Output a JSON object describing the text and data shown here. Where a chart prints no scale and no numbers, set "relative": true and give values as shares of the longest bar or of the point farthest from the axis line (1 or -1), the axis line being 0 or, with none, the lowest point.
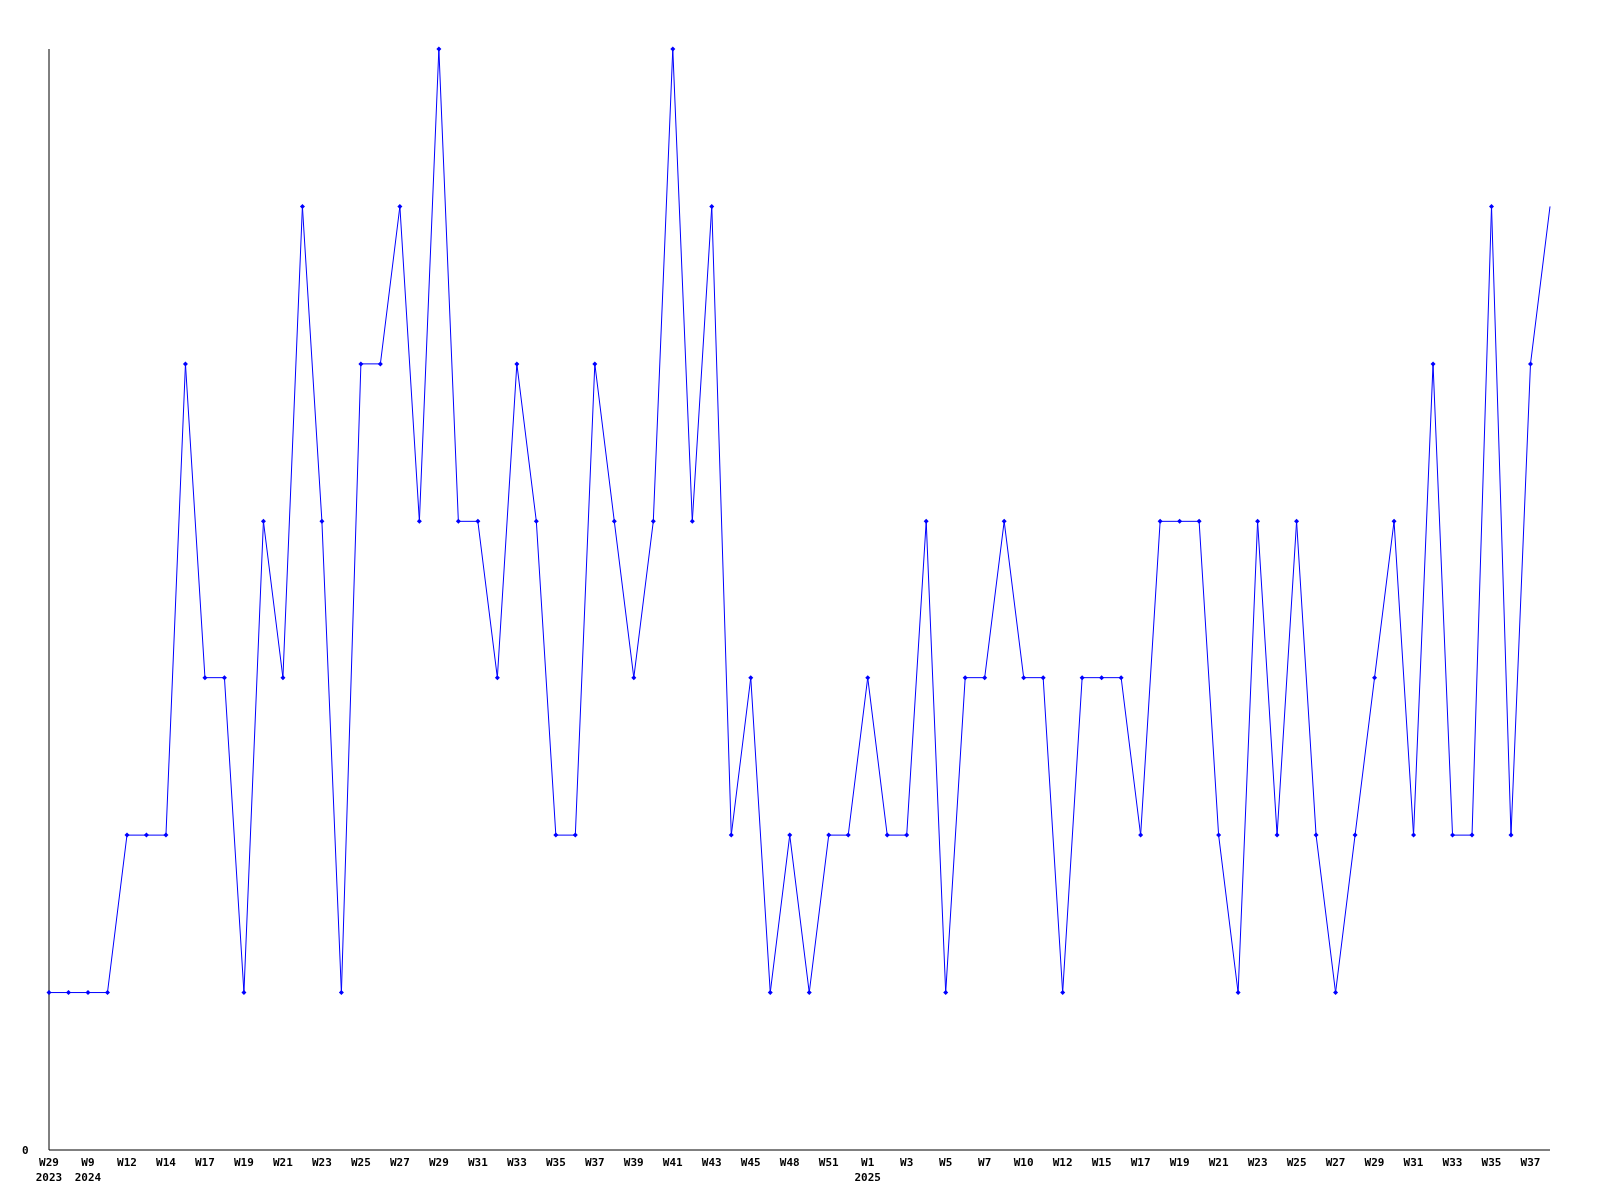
{
  "chart_data": {
    "type": "line",
    "relative": true,
    "color": "#0000ff",
    "marker": "diamond",
    "grid": false,
    "categories": [
      "W29\n2023",
      null,
      "W9\n2024",
      null,
      "W12",
      null,
      "W14",
      null,
      "W17",
      null,
      "W19",
      null,
      "W21",
      null,
      "W23",
      null,
      "W25",
      null,
      "W27",
      null,
      "W29",
      null,
      "W31",
      null,
      "W33",
      null,
      "W35",
      null,
      "W37",
      null,
      "W39",
      null,
      "W41",
      null,
      "W43",
      null,
      "W45",
      null,
      "W48",
      null,
      "W51",
      null,
      "W1\n2025",
      null,
      "W3",
      null,
      "W5",
      null,
      "W7",
      null,
      "W10",
      null,
      "W12",
      null,
      "W15",
      null,
      "W17",
      null,
      "W19",
      null,
      "W21",
      null,
      "W23",
      null,
      "W25",
      null,
      "W27",
      null,
      "W29",
      null,
      "W31",
      null,
      "W33",
      null,
      "W35",
      null,
      "W37",
      null
    ],
    "values": [
      0.143,
      0.143,
      0.143,
      0.143,
      0.286,
      0.286,
      0.286,
      0.714,
      0.429,
      0.429,
      0.143,
      0.571,
      0.429,
      0.857,
      0.571,
      0.143,
      0.714,
      0.714,
      0.857,
      0.571,
      1,
      0.571,
      0.571,
      0.429,
      0.714,
      0.571,
      0.286,
      0.286,
      0.714,
      0.571,
      0.429,
      0.571,
      1,
      0.571,
      0.857,
      0.286,
      0.429,
      0.143,
      0.286,
      0.143,
      0.286,
      0.286,
      0.429,
      0.286,
      0.286,
      0.571,
      0.143,
      0.429,
      0.429,
      0.571,
      0.429,
      0.429,
      0.143,
      0.429,
      0.429,
      0.429,
      0.286,
      0.571,
      0.571,
      0.571,
      0.286,
      0.143,
      0.571,
      0.286,
      0.571,
      0.286,
      0.143,
      0.286,
      0.429,
      0.571,
      0.286,
      0.714,
      0.286,
      0.286,
      0.857,
      0.286,
      0.714,
      0.857
    ],
    "annotations": [
      "0"
    ]
  }
}
